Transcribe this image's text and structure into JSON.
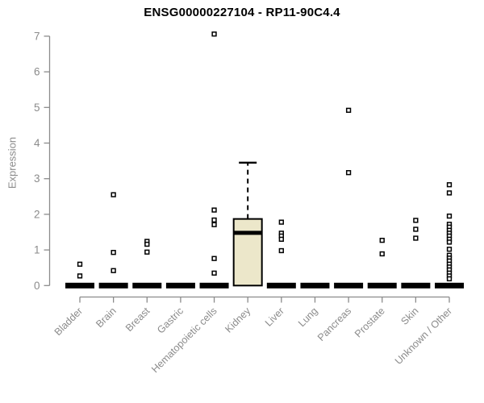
{
  "chart_data": {
    "type": "boxplot",
    "title": "ENSG00000227104 - RP11-90C4.4",
    "ylabel": "Expression",
    "xlabel": "",
    "ylim": [
      0,
      7
    ],
    "yticks": [
      0,
      1,
      2,
      3,
      4,
      5,
      6,
      7
    ],
    "grid": false,
    "legend": "none",
    "categories": [
      "Bladder",
      "Brain",
      "Breast",
      "Gastric",
      "Hematopoietic cells",
      "Kidney",
      "Liver",
      "Lung",
      "Pancreas",
      "Prostate",
      "Skin",
      "Unknown / Other"
    ],
    "series": [
      {
        "category": "Bladder",
        "q1": 0,
        "median": 0,
        "q3": 0,
        "whisker_low": 0,
        "whisker_high": 0,
        "outliers": [
          0.6,
          0.27
        ]
      },
      {
        "category": "Brain",
        "q1": 0,
        "median": 0,
        "q3": 0,
        "whisker_low": 0,
        "whisker_high": 0,
        "outliers": [
          2.55,
          0.93,
          0.42
        ]
      },
      {
        "category": "Breast",
        "q1": 0,
        "median": 0,
        "q3": 0,
        "whisker_low": 0,
        "whisker_high": 0,
        "outliers": [
          1.24,
          1.16,
          0.94
        ]
      },
      {
        "category": "Gastric",
        "q1": 0,
        "median": 0,
        "q3": 0,
        "whisker_low": 0,
        "whisker_high": 0,
        "outliers": []
      },
      {
        "category": "Hematopoietic cells",
        "q1": 0,
        "median": 0,
        "q3": 0,
        "whisker_low": 0,
        "whisker_high": 0,
        "outliers": [
          7.06,
          2.12,
          1.84,
          1.71,
          0.76,
          0.35
        ]
      },
      {
        "category": "Kidney",
        "q1": 0,
        "median": 1.48,
        "q3": 1.87,
        "whisker_low": 0,
        "whisker_high": 3.45,
        "outliers": []
      },
      {
        "category": "Liver",
        "q1": 0,
        "median": 0,
        "q3": 0,
        "whisker_low": 0,
        "whisker_high": 0,
        "outliers": [
          1.78,
          1.47,
          1.39,
          1.3,
          0.98
        ]
      },
      {
        "category": "Lung",
        "q1": 0,
        "median": 0,
        "q3": 0,
        "whisker_low": 0,
        "whisker_high": 0,
        "outliers": []
      },
      {
        "category": "Pancreas",
        "q1": 0,
        "median": 0,
        "q3": 0,
        "whisker_low": 0,
        "whisker_high": 0,
        "outliers": [
          4.92,
          3.17
        ]
      },
      {
        "category": "Prostate",
        "q1": 0,
        "median": 0,
        "q3": 0,
        "whisker_low": 0,
        "whisker_high": 0,
        "outliers": [
          1.27,
          0.89
        ]
      },
      {
        "category": "Skin",
        "q1": 0,
        "median": 0,
        "q3": 0,
        "whisker_low": 0,
        "whisker_high": 0,
        "outliers": [
          1.83,
          1.58,
          1.33
        ]
      },
      {
        "category": "Unknown / Other",
        "q1": 0,
        "median": 0,
        "q3": 0,
        "whisker_low": 0,
        "whisker_high": 0,
        "outliers": [
          2.83,
          2.6,
          1.95,
          1.72,
          1.64,
          1.55,
          1.47,
          1.39,
          1.3,
          1.22,
          1.02,
          0.85,
          0.77,
          0.69,
          0.6,
          0.52,
          0.44,
          0.35,
          0.27,
          0.19
        ]
      }
    ],
    "colors": {
      "box_fill": "#ece7ca",
      "box_stroke": "#000000",
      "median": "#000000",
      "collapsed_box": "#000000",
      "outlier_fill": "#ffffff",
      "outlier_stroke": "#000000",
      "axis": "#8b8b8b",
      "tick_label": "#8b8b8b",
      "title": "#000000",
      "background": "#ffffff"
    }
  }
}
